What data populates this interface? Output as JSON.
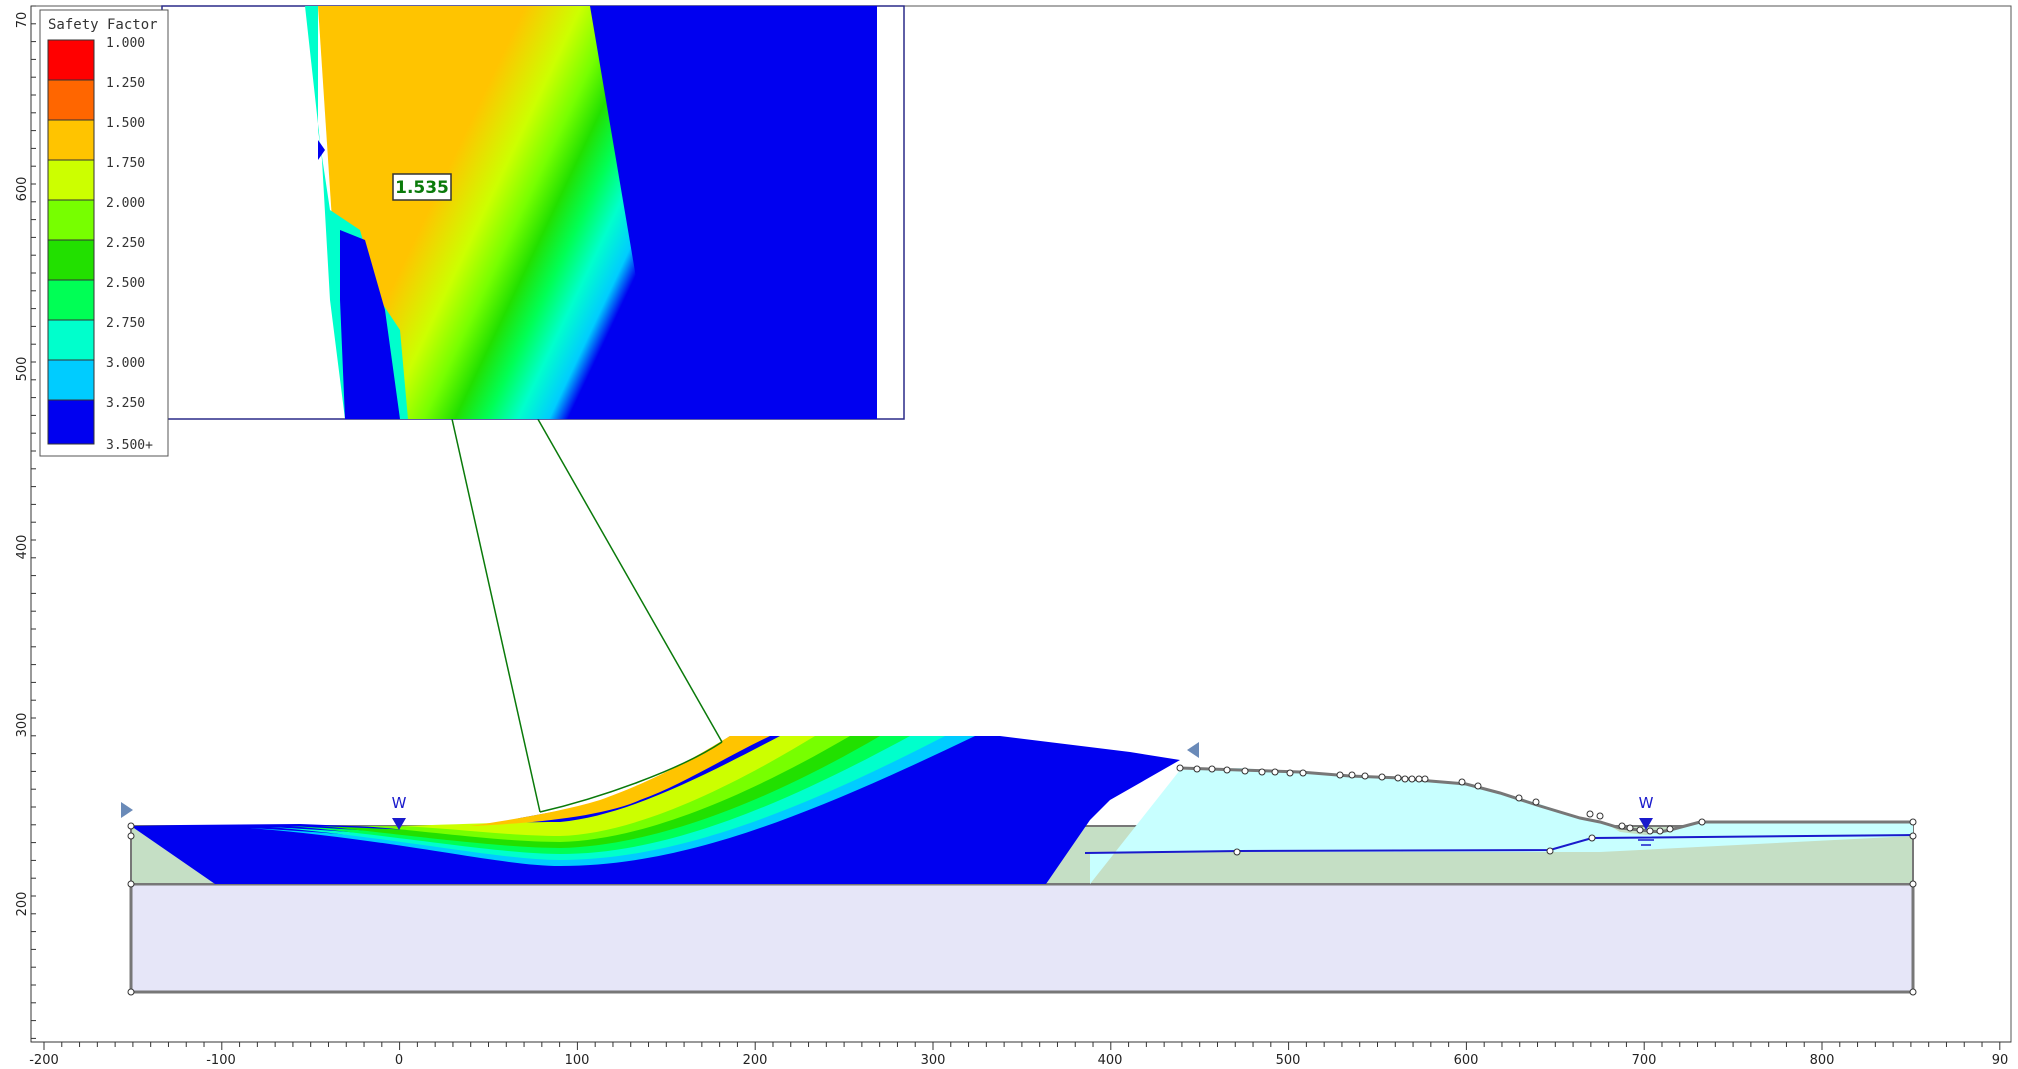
{
  "legend": {
    "title": "Safety Factor",
    "items": [
      {
        "label": "1.000",
        "color": "#ff0000"
      },
      {
        "label": "1.250",
        "color": "#ff6600"
      },
      {
        "label": "1.500",
        "color": "#ffc400"
      },
      {
        "label": "1.750",
        "color": "#ccff00"
      },
      {
        "label": "2.000",
        "color": "#77ff00"
      },
      {
        "label": "2.250",
        "color": "#22e000"
      },
      {
        "label": "2.500",
        "color": "#00ff55"
      },
      {
        "label": "2.750",
        "color": "#00ffcc"
      },
      {
        "label": "3.000",
        "color": "#00ccff"
      },
      {
        "label": "3.250",
        "color": "#0000ff"
      },
      {
        "label": "3.500+",
        "color": ""
      }
    ]
  },
  "min_safety_factor": "1.535",
  "water_markers": [
    "W",
    "W"
  ],
  "x_axis": {
    "ticks": [
      "-200",
      "-100",
      "0",
      "100",
      "200",
      "300",
      "400",
      "500",
      "600",
      "700",
      "800",
      "90"
    ]
  },
  "y_axis": {
    "ticks": [
      "70",
      "600",
      "500",
      "400",
      "300",
      "200"
    ]
  },
  "colors": {
    "blue": "#0000f0",
    "embankment_fill": "#c8ffff",
    "foundation_fill": "#c5dfc5",
    "bedrock_fill": "#e6e6f8",
    "slip_line": "#0a7a0a",
    "water_line": "#1a1acc"
  }
}
